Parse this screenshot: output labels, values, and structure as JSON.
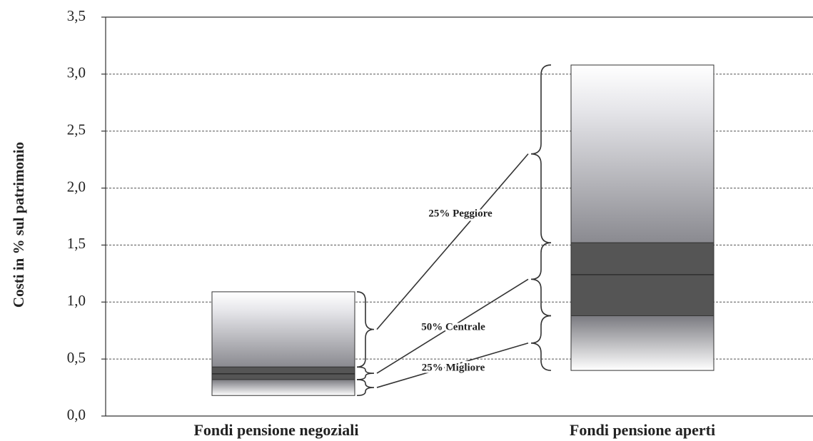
{
  "chart_data": {
    "type": "box",
    "y_label": "Costi in % sul patrimonio",
    "categories": [
      "Fondi pensione negoziali",
      "Fondi pensione aperti"
    ],
    "boxes": [
      {
        "min": 0.18,
        "q1": 0.32,
        "median": 0.37,
        "q3": 0.43,
        "max": 1.09
      },
      {
        "min": 0.4,
        "q1": 0.88,
        "median": 1.24,
        "q3": 1.52,
        "max": 3.08
      }
    ],
    "annotations": [
      "25% Peggiore",
      "50% Centrale",
      "25% Migliore"
    ],
    "ylim": [
      0,
      3.5
    ],
    "yticks": [
      {
        "value": 0,
        "label": "0,0"
      },
      {
        "value": 0.5,
        "label": "0,5"
      },
      {
        "value": 1,
        "label": "1,0"
      },
      {
        "value": 1.5,
        "label": "1,5"
      },
      {
        "value": 2,
        "label": "2,0"
      },
      {
        "value": 2.5,
        "label": "2,5"
      },
      {
        "value": 3,
        "label": "3,0"
      },
      {
        "value": 3.5,
        "label": "3,5"
      }
    ],
    "grid": true,
    "color": "#555555"
  }
}
